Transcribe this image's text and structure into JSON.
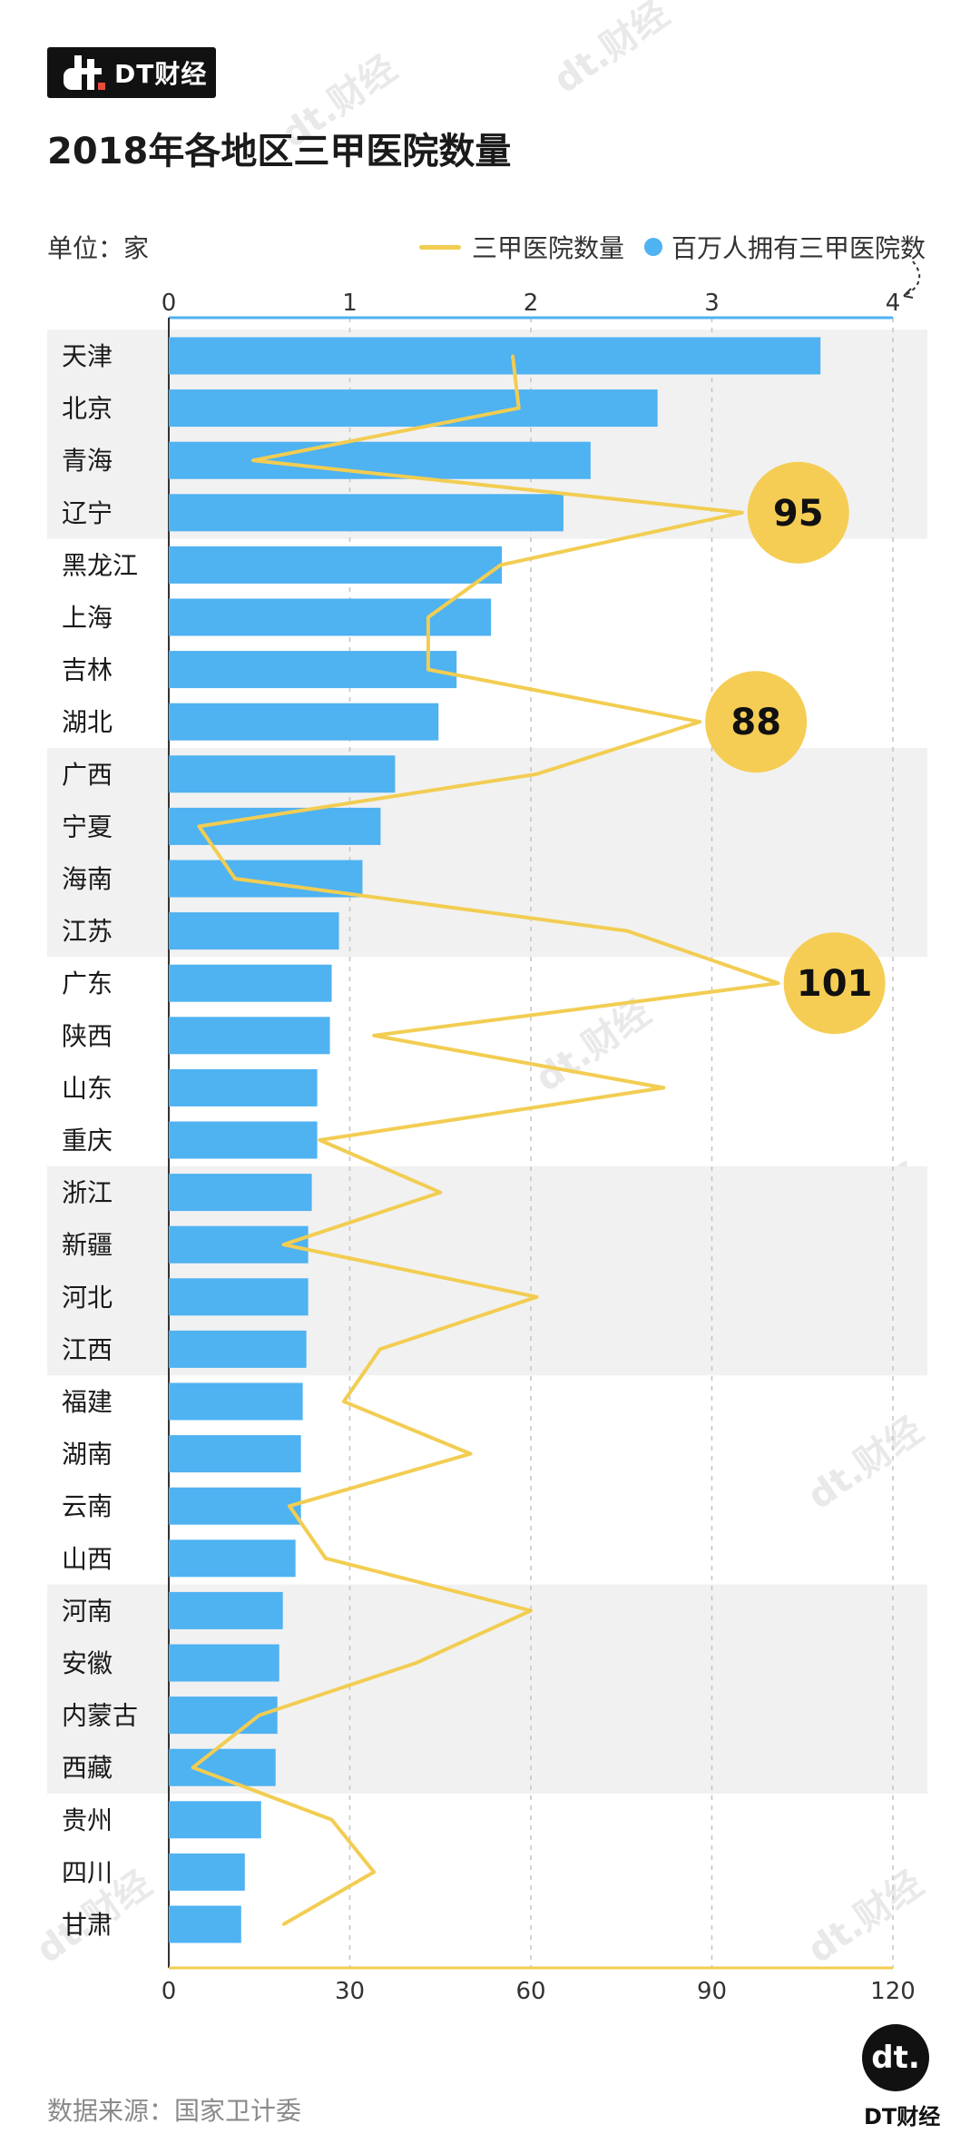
{
  "brand": {
    "name": "DT财经"
  },
  "title": "2018年各地区三甲医院数量",
  "unit_label": "单位：家",
  "source": "数据来源：国家卫计委",
  "legend": {
    "line_label": "三甲医院数量",
    "bar_label": "百万人拥有三甲医院数"
  },
  "colors": {
    "bar": "#4fb2f1",
    "line": "#f2cd52",
    "band": "#f1f1f1",
    "bubble": "#f5cd55"
  },
  "watermark": "dt.财经",
  "chart_data": {
    "type": "bar",
    "categories": [
      "天津",
      "北京",
      "青海",
      "辽宁",
      "黑龙江",
      "上海",
      "吉林",
      "湖北",
      "广西",
      "宁夏",
      "海南",
      "江苏",
      "广东",
      "陕西",
      "山东",
      "重庆",
      "浙江",
      "新疆",
      "河北",
      "江西",
      "福建",
      "湖南",
      "云南",
      "山西",
      "河南",
      "安徽",
      "内蒙古",
      "西藏",
      "贵州",
      "四川",
      "甘肃"
    ],
    "series": [
      {
        "name": "百万人拥有三甲医院数",
        "axis": "top",
        "values": [
          3.6,
          2.7,
          2.33,
          2.18,
          1.84,
          1.78,
          1.59,
          1.49,
          1.25,
          1.17,
          1.07,
          0.94,
          0.9,
          0.89,
          0.82,
          0.82,
          0.79,
          0.77,
          0.77,
          0.76,
          0.74,
          0.73,
          0.73,
          0.7,
          0.63,
          0.61,
          0.6,
          0.59,
          0.51,
          0.42,
          0.4
        ]
      },
      {
        "name": "三甲医院数量",
        "axis": "bottom",
        "values": [
          57,
          58,
          14,
          95,
          55,
          43,
          43,
          88,
          61,
          5,
          11,
          76,
          101,
          34,
          82,
          25,
          45,
          19,
          61,
          35,
          29,
          50,
          20,
          26,
          60,
          41,
          15,
          4,
          27,
          34,
          19
        ]
      }
    ],
    "top_axis": {
      "ticks": [
        "0",
        "1",
        "2",
        "3",
        "4"
      ],
      "range": [
        0,
        4
      ]
    },
    "bottom_axis": {
      "ticks": [
        "0",
        "30",
        "60",
        "90",
        "120"
      ],
      "range": [
        0,
        120
      ]
    },
    "callouts": [
      {
        "category": "辽宁",
        "label": "95"
      },
      {
        "category": "湖北",
        "label": "88"
      },
      {
        "category": "广东",
        "label": "101"
      }
    ],
    "bands": [
      "天津-辽宁",
      "广西-江苏",
      "浙江-江西",
      "河南-西藏"
    ],
    "grid": "vertical dashed"
  }
}
